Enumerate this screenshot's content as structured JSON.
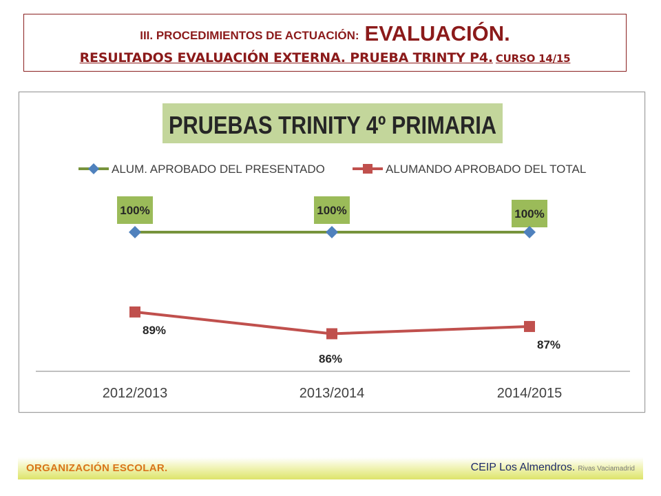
{
  "header": {
    "line1_small": "III. PROCEDIMIENTOS DE ACTUACIÓN:",
    "line1_big": "EVALUACIÓN.",
    "line2_main": "RESULTADOS EVALUACIÓN EXTERNA. PRUEBA TRINTY P4.",
    "line2_curso": "CURSO 14/15"
  },
  "chart_data": {
    "type": "line",
    "title": "PRUEBAS TRINITY 4º PRIMARIA",
    "categories": [
      "2012/2013",
      "2013/2014",
      "2014/2015"
    ],
    "series": [
      {
        "name": "ALUM. APROBADO DEL PRESENTADO",
        "values": [
          100,
          100,
          100
        ],
        "labels": [
          "100%",
          "100%",
          "100%"
        ],
        "color": "#77933c",
        "marker": "diamond",
        "marker_color": "#4f81bd"
      },
      {
        "name": "ALUMANDO APROBADO DEL TOTAL",
        "values": [
          89,
          86,
          87
        ],
        "labels": [
          "89%",
          "86%",
          "87%"
        ],
        "color": "#c0504d",
        "marker": "square",
        "marker_color": "#c0504d"
      }
    ],
    "legend": "top",
    "grid": false,
    "title_background": "#c3d69b",
    "label_background": "#9bbb59"
  },
  "footer": {
    "left": "ORGANIZACIÓN ESCOLAR.",
    "right": "CEIP Los Almendros.",
    "right_small": "Rivas Vaciamadrid"
  }
}
